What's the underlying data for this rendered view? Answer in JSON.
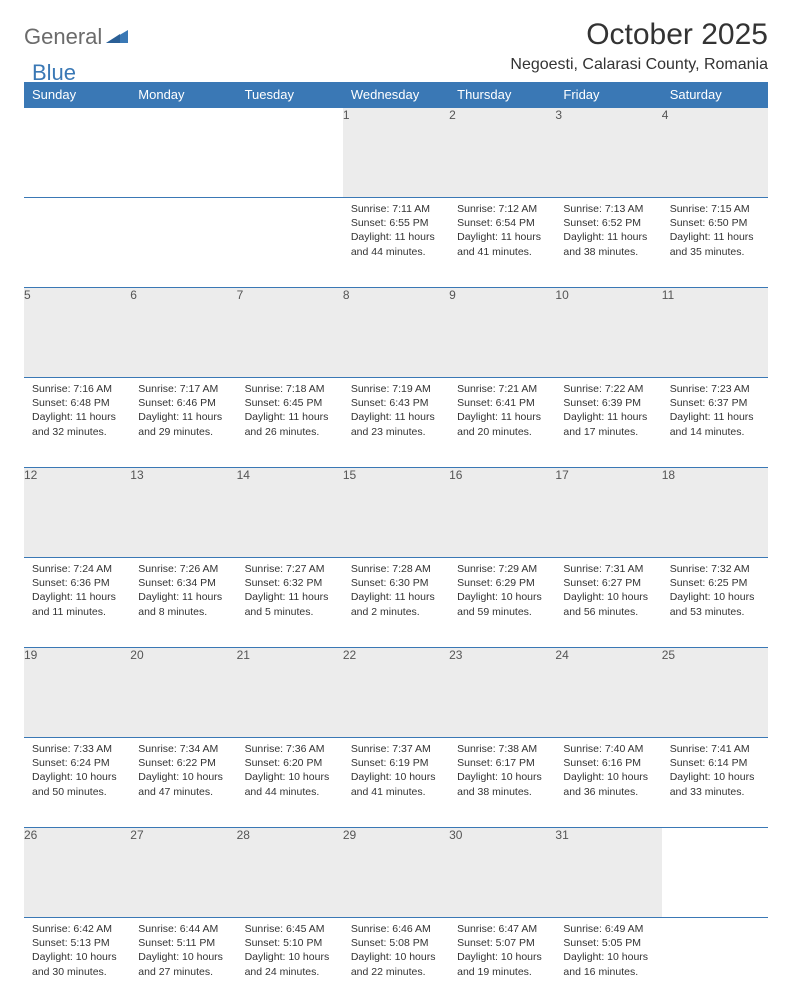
{
  "brand": {
    "part1": "General",
    "part2": "Blue"
  },
  "title": "October 2025",
  "location": "Negoesti, Calarasi County, Romania",
  "colors": {
    "header_bg": "#3a78b5",
    "header_text": "#ffffff",
    "daynum_bg": "#ececec",
    "border": "#3a78b5",
    "text": "#333333",
    "brand_gray": "#6b6b6b",
    "brand_blue": "#3a78b5",
    "page_bg": "#ffffff"
  },
  "weekdays": [
    "Sunday",
    "Monday",
    "Tuesday",
    "Wednesday",
    "Thursday",
    "Friday",
    "Saturday"
  ],
  "weeks": [
    [
      {
        "n": "",
        "sr": "",
        "ss": "",
        "dl": ""
      },
      {
        "n": "",
        "sr": "",
        "ss": "",
        "dl": ""
      },
      {
        "n": "",
        "sr": "",
        "ss": "",
        "dl": ""
      },
      {
        "n": "1",
        "sr": "7:11 AM",
        "ss": "6:55 PM",
        "dl": "11 hours and 44 minutes."
      },
      {
        "n": "2",
        "sr": "7:12 AM",
        "ss": "6:54 PM",
        "dl": "11 hours and 41 minutes."
      },
      {
        "n": "3",
        "sr": "7:13 AM",
        "ss": "6:52 PM",
        "dl": "11 hours and 38 minutes."
      },
      {
        "n": "4",
        "sr": "7:15 AM",
        "ss": "6:50 PM",
        "dl": "11 hours and 35 minutes."
      }
    ],
    [
      {
        "n": "5",
        "sr": "7:16 AM",
        "ss": "6:48 PM",
        "dl": "11 hours and 32 minutes."
      },
      {
        "n": "6",
        "sr": "7:17 AM",
        "ss": "6:46 PM",
        "dl": "11 hours and 29 minutes."
      },
      {
        "n": "7",
        "sr": "7:18 AM",
        "ss": "6:45 PM",
        "dl": "11 hours and 26 minutes."
      },
      {
        "n": "8",
        "sr": "7:19 AM",
        "ss": "6:43 PM",
        "dl": "11 hours and 23 minutes."
      },
      {
        "n": "9",
        "sr": "7:21 AM",
        "ss": "6:41 PM",
        "dl": "11 hours and 20 minutes."
      },
      {
        "n": "10",
        "sr": "7:22 AM",
        "ss": "6:39 PM",
        "dl": "11 hours and 17 minutes."
      },
      {
        "n": "11",
        "sr": "7:23 AM",
        "ss": "6:37 PM",
        "dl": "11 hours and 14 minutes."
      }
    ],
    [
      {
        "n": "12",
        "sr": "7:24 AM",
        "ss": "6:36 PM",
        "dl": "11 hours and 11 minutes."
      },
      {
        "n": "13",
        "sr": "7:26 AM",
        "ss": "6:34 PM",
        "dl": "11 hours and 8 minutes."
      },
      {
        "n": "14",
        "sr": "7:27 AM",
        "ss": "6:32 PM",
        "dl": "11 hours and 5 minutes."
      },
      {
        "n": "15",
        "sr": "7:28 AM",
        "ss": "6:30 PM",
        "dl": "11 hours and 2 minutes."
      },
      {
        "n": "16",
        "sr": "7:29 AM",
        "ss": "6:29 PM",
        "dl": "10 hours and 59 minutes."
      },
      {
        "n": "17",
        "sr": "7:31 AM",
        "ss": "6:27 PM",
        "dl": "10 hours and 56 minutes."
      },
      {
        "n": "18",
        "sr": "7:32 AM",
        "ss": "6:25 PM",
        "dl": "10 hours and 53 minutes."
      }
    ],
    [
      {
        "n": "19",
        "sr": "7:33 AM",
        "ss": "6:24 PM",
        "dl": "10 hours and 50 minutes."
      },
      {
        "n": "20",
        "sr": "7:34 AM",
        "ss": "6:22 PM",
        "dl": "10 hours and 47 minutes."
      },
      {
        "n": "21",
        "sr": "7:36 AM",
        "ss": "6:20 PM",
        "dl": "10 hours and 44 minutes."
      },
      {
        "n": "22",
        "sr": "7:37 AM",
        "ss": "6:19 PM",
        "dl": "10 hours and 41 minutes."
      },
      {
        "n": "23",
        "sr": "7:38 AM",
        "ss": "6:17 PM",
        "dl": "10 hours and 38 minutes."
      },
      {
        "n": "24",
        "sr": "7:40 AM",
        "ss": "6:16 PM",
        "dl": "10 hours and 36 minutes."
      },
      {
        "n": "25",
        "sr": "7:41 AM",
        "ss": "6:14 PM",
        "dl": "10 hours and 33 minutes."
      }
    ],
    [
      {
        "n": "26",
        "sr": "6:42 AM",
        "ss": "5:13 PM",
        "dl": "10 hours and 30 minutes."
      },
      {
        "n": "27",
        "sr": "6:44 AM",
        "ss": "5:11 PM",
        "dl": "10 hours and 27 minutes."
      },
      {
        "n": "28",
        "sr": "6:45 AM",
        "ss": "5:10 PM",
        "dl": "10 hours and 24 minutes."
      },
      {
        "n": "29",
        "sr": "6:46 AM",
        "ss": "5:08 PM",
        "dl": "10 hours and 22 minutes."
      },
      {
        "n": "30",
        "sr": "6:47 AM",
        "ss": "5:07 PM",
        "dl": "10 hours and 19 minutes."
      },
      {
        "n": "31",
        "sr": "6:49 AM",
        "ss": "5:05 PM",
        "dl": "10 hours and 16 minutes."
      },
      {
        "n": "",
        "sr": "",
        "ss": "",
        "dl": ""
      }
    ]
  ],
  "labels": {
    "sunrise": "Sunrise:",
    "sunset": "Sunset:",
    "daylight": "Daylight:"
  }
}
